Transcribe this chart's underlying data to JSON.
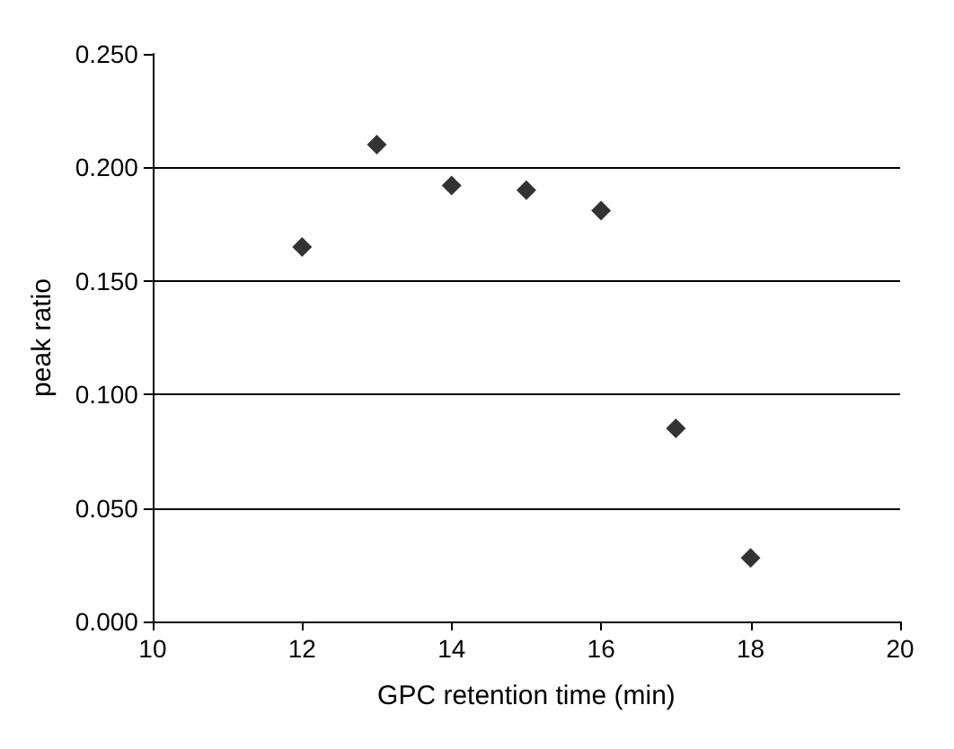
{
  "chart_data": {
    "type": "scatter",
    "xlabel": "GPC retention time (min)",
    "ylabel": "peak ratio",
    "x": [
      12,
      13,
      14,
      15,
      16,
      17,
      18
    ],
    "series": [
      {
        "color": "#000000",
        "values": [
          0.165,
          0.21,
          0.192,
          0.19,
          0.181,
          0.085,
          0.028
        ]
      }
    ],
    "xlim": [
      10,
      20
    ],
    "xticks": [
      10,
      12,
      14,
      16,
      18,
      20
    ],
    "ylim": [
      0,
      0.25
    ],
    "yticks": [
      {
        "value": 0,
        "label": "0.000"
      },
      {
        "value": 0.05,
        "label": "0.050"
      },
      {
        "value": 0.1,
        "label": "0.100"
      },
      {
        "value": 0.15,
        "label": "0.150"
      },
      {
        "value": 0.2,
        "label": "0.200"
      },
      {
        "value": 0.25,
        "label": "0.250"
      }
    ],
    "grid": "y",
    "marker": "diamond"
  }
}
